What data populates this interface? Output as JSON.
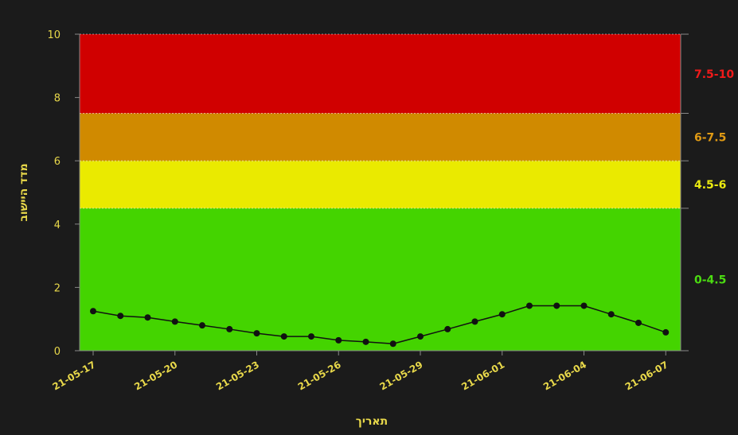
{
  "chart_data": {
    "type": "line",
    "xlabel": "תאריך",
    "ylabel": "מדד היישוב",
    "ylim": [
      0,
      10
    ],
    "y_ticks": [
      "0",
      "2",
      "4",
      "6",
      "8",
      "10"
    ],
    "x_tick_labels": [
      "21-05-17",
      "21-05-20",
      "21-05-23",
      "21-05-26",
      "21-05-29",
      "21-06-01",
      "21-06-04",
      "21-06-07"
    ],
    "x": [
      "21-05-17",
      "21-05-18",
      "21-05-19",
      "21-05-20",
      "21-05-21",
      "21-05-22",
      "21-05-23",
      "21-05-24",
      "21-05-25",
      "21-05-26",
      "21-05-27",
      "21-05-28",
      "21-05-29",
      "21-05-30",
      "21-05-31",
      "21-06-01",
      "21-06-02",
      "21-06-03",
      "21-06-04",
      "21-06-05",
      "21-06-06",
      "21-06-07"
    ],
    "series": [
      {
        "values": [
          1.25,
          1.1,
          1.05,
          0.92,
          0.8,
          0.68,
          0.55,
          0.45,
          0.45,
          0.33,
          0.28,
          0.22,
          0.45,
          0.68,
          0.92,
          1.15,
          1.42,
          1.42,
          1.42,
          1.15,
          0.88,
          0.58
        ],
        "color": "#111111"
      }
    ],
    "bands": [
      {
        "from": 0,
        "to": 4.5,
        "label": "0-4.5",
        "fill": "#44d400",
        "text_color": "#4bdc11"
      },
      {
        "from": 4.5,
        "to": 6,
        "label": "4.5-6",
        "fill": "#eaea00",
        "text_color": "#eaea10"
      },
      {
        "from": 6,
        "to": 7.5,
        "label": "6-7.5",
        "fill": "#d08a00",
        "text_color": "#e09a14"
      },
      {
        "from": 7.5,
        "to": 10,
        "label": "7.5-10",
        "fill": "#d00000",
        "text_color": "#f01a1a"
      }
    ],
    "grid": false
  }
}
